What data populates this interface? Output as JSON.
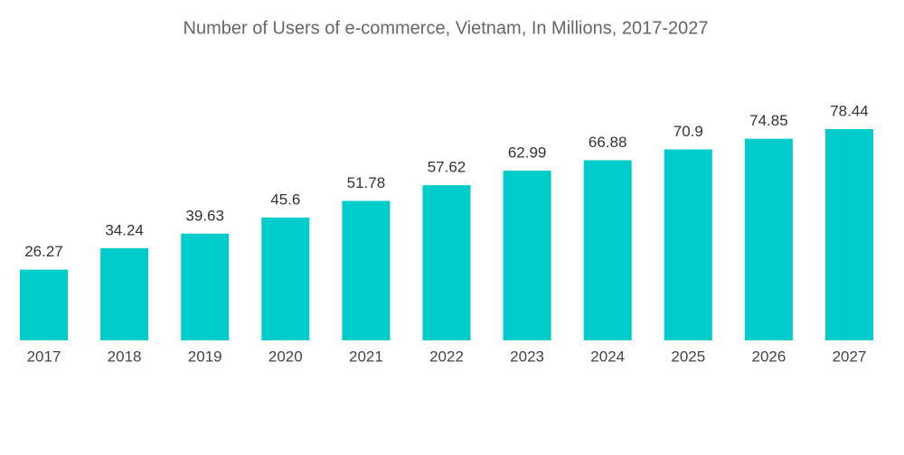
{
  "chart_data": {
    "type": "bar",
    "title": "Number of Users of e-commerce, Vietnam, In Millions, 2017-2027",
    "categories": [
      "2017",
      "2018",
      "2019",
      "2020",
      "2021",
      "2022",
      "2023",
      "2024",
      "2025",
      "2026",
      "2027"
    ],
    "values": [
      26.27,
      34.24,
      39.63,
      45.6,
      51.78,
      57.62,
      62.99,
      66.88,
      70.9,
      74.85,
      78.44
    ],
    "color": "#00cccc"
  }
}
